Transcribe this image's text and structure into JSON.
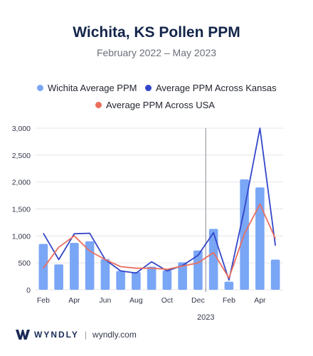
{
  "brand": {
    "name": "WYNDLY",
    "url": "wyndly.com",
    "color": "#1a2b57"
  },
  "chart_data": {
    "type": "bar+line",
    "title": "Wichita, KS Pollen PPM",
    "subtitle": "February 2022 – May 2023",
    "categories": [
      "Feb",
      "Mar",
      "Apr",
      "May",
      "Jun",
      "Jul",
      "Aug",
      "Sep",
      "Oct",
      "Nov",
      "Dec",
      "Jan",
      "Feb",
      "Mar",
      "Apr",
      "May"
    ],
    "x_tick_labels": [
      "Feb",
      "",
      "Apr",
      "",
      "Jun",
      "",
      "Aug",
      "",
      "Oct",
      "",
      "Dec",
      "",
      "Feb",
      "",
      "Apr",
      ""
    ],
    "year_marker": {
      "label": "2023",
      "between_index": 10.5
    },
    "ylim": [
      0,
      3000
    ],
    "yticks": [
      0,
      500,
      1000,
      1500,
      2000,
      2500,
      3000
    ],
    "ytick_labels": [
      "0",
      "500",
      "1,000",
      "1,500",
      "2,000",
      "2,500",
      "3,000"
    ],
    "grid": true,
    "legend_position": "top",
    "series": [
      {
        "name": "Wichita Average PPM",
        "kind": "bar",
        "color": "#7aa6f6",
        "values": [
          850,
          470,
          870,
          900,
          570,
          350,
          330,
          430,
          360,
          510,
          730,
          1130,
          150,
          2050,
          1900,
          560
        ]
      },
      {
        "name": "Average PPM Across Kansas",
        "kind": "line",
        "color": "#3346c9",
        "values": [
          1050,
          560,
          1040,
          1050,
          560,
          350,
          310,
          520,
          350,
          450,
          640,
          1060,
          180,
          1500,
          3000,
          820
        ]
      },
      {
        "name": "Average PPM Across USA",
        "kind": "line",
        "color": "#ea6e5d",
        "values": [
          400,
          790,
          1000,
          720,
          560,
          430,
          400,
          400,
          380,
          440,
          500,
          690,
          220,
          1040,
          1590,
          950
        ]
      }
    ]
  }
}
